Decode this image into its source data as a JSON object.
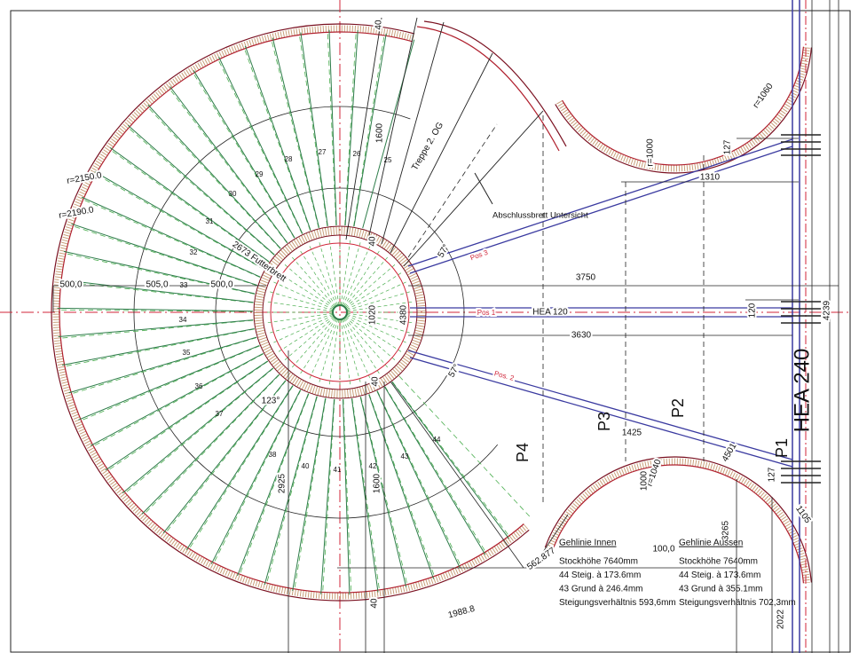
{
  "dimensions": [
    "40",
    "1600",
    "r=1060",
    "r=1000",
    "127",
    "1310",
    "r=2150.0",
    "r=2190.0",
    "2673 Futterbrett",
    "500,0",
    "505,0",
    "500,0",
    "3750",
    "1020",
    "4380",
    "120",
    "4239",
    "3630",
    "57°",
    "57°",
    "40",
    "40",
    "123°",
    "1425",
    "4501",
    "r=1040",
    "1000",
    "127",
    "1105",
    "2925",
    "1600",
    "562.877",
    "1988.8",
    "3265",
    "2022",
    "40",
    "100,0"
  ],
  "annotations": [
    "Treppe 2. OG",
    "Abschlussbrett Untersicht"
  ],
  "members": [
    "HEA 120",
    "Pos 1",
    "Pos 3",
    "Pos. 2",
    "HEA 240",
    "P1",
    "P2",
    "P3",
    "P4"
  ],
  "steps": [
    "25",
    "26",
    "27",
    "28",
    "29",
    "30",
    "31",
    "32",
    "33",
    "34",
    "35",
    "36",
    "37",
    "38",
    "40",
    "41",
    "42",
    "43",
    "44"
  ],
  "legend": [
    {
      "title": "Gehlinie Innen",
      "lines": [
        "Stockhöhe 7640mm",
        "44 Steig. à 173.6mm",
        "43 Grund à 246.4mm",
        "Steigungsverhältnis 593,6mm"
      ]
    },
    {
      "title": "Gehlinie Aussen",
      "lines": [
        "Stockhöhe 7640mm",
        "44 Steig. à 173.6mm",
        "43 Grund à 355.1mm",
        "Steigungsverhältnis 702,3mm"
      ]
    }
  ]
}
